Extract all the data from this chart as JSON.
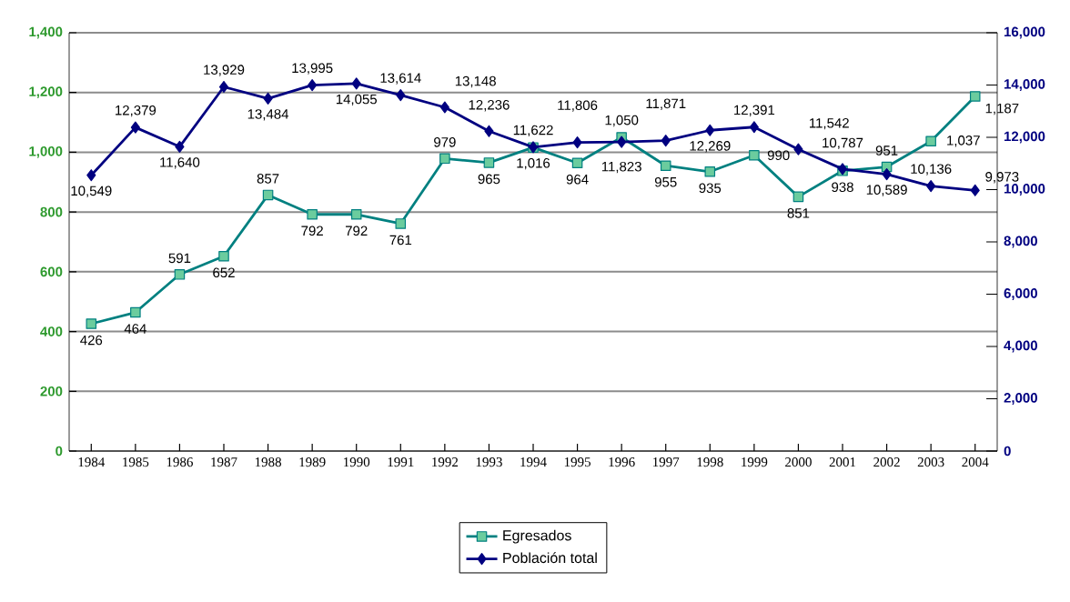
{
  "chart_data": {
    "type": "line",
    "categories": [
      "1984",
      "1985",
      "1986",
      "1987",
      "1988",
      "1989",
      "1990",
      "1991",
      "1992",
      "1993",
      "1994",
      "1995",
      "1996",
      "1997",
      "1998",
      "1999",
      "2000",
      "2001",
      "2002",
      "2003",
      "2004"
    ],
    "series": [
      {
        "name": "Egresados",
        "color": "#008080",
        "marker": "square",
        "values": [
          426,
          464,
          591,
          652,
          857,
          792,
          792,
          761,
          979,
          965,
          1016,
          964,
          1050,
          955,
          935,
          990,
          851,
          938,
          951,
          1037,
          1187
        ],
        "value_labels": [
          "426",
          "464",
          "591",
          "652",
          "857",
          "792",
          "792",
          "761",
          "979",
          "965",
          "1,016",
          "964",
          "1,050",
          "955",
          "935",
          "990",
          "851",
          "938",
          "951",
          "1,037",
          "1,187"
        ]
      },
      {
        "name": "Población total",
        "color": "#000080",
        "marker": "diamond",
        "axis": "y2",
        "values": [
          10549,
          12379,
          11640,
          13929,
          13484,
          13995,
          14055,
          13614,
          13148,
          12236,
          11622,
          11806,
          11823,
          11871,
          12269,
          12391,
          11542,
          10787,
          10589,
          10136,
          9973
        ],
        "value_labels": [
          "10,549",
          "12,379",
          "11,640",
          "13,929",
          "13,484",
          "13,995",
          "14,055",
          "13,614",
          "13,148",
          "12,236",
          "11,622",
          "11,806",
          "11,823",
          "11,871",
          "12,269",
          "12,391",
          "11,542",
          "10,787",
          "10,589",
          "10,136",
          "9,973"
        ]
      }
    ],
    "ylim": [
      0,
      1400
    ],
    "yticks": [
      {
        "value": 0,
        "label": "0"
      },
      {
        "value": 200,
        "label": "200"
      },
      {
        "value": 400,
        "label": "400"
      },
      {
        "value": 600,
        "label": "600"
      },
      {
        "value": 800,
        "label": "800"
      },
      {
        "value": 1000,
        "label": "1,000"
      },
      {
        "value": 1200,
        "label": "1,200"
      },
      {
        "value": 1400,
        "label": "1,400"
      }
    ],
    "y2lim": [
      0,
      16000
    ],
    "y2ticks": [
      {
        "value": 0,
        "label": "0"
      },
      {
        "value": 2000,
        "label": "2,000"
      },
      {
        "value": 4000,
        "label": "4,000"
      },
      {
        "value": 6000,
        "label": "6,000"
      },
      {
        "value": 8000,
        "label": "8,000"
      },
      {
        "value": 10000,
        "label": "10,000"
      },
      {
        "value": 12000,
        "label": "12,000"
      },
      {
        "value": 14000,
        "label": "14,000"
      },
      {
        "value": 16000,
        "label": "16,000"
      }
    ],
    "grid": "y",
    "legend": "bottom"
  }
}
